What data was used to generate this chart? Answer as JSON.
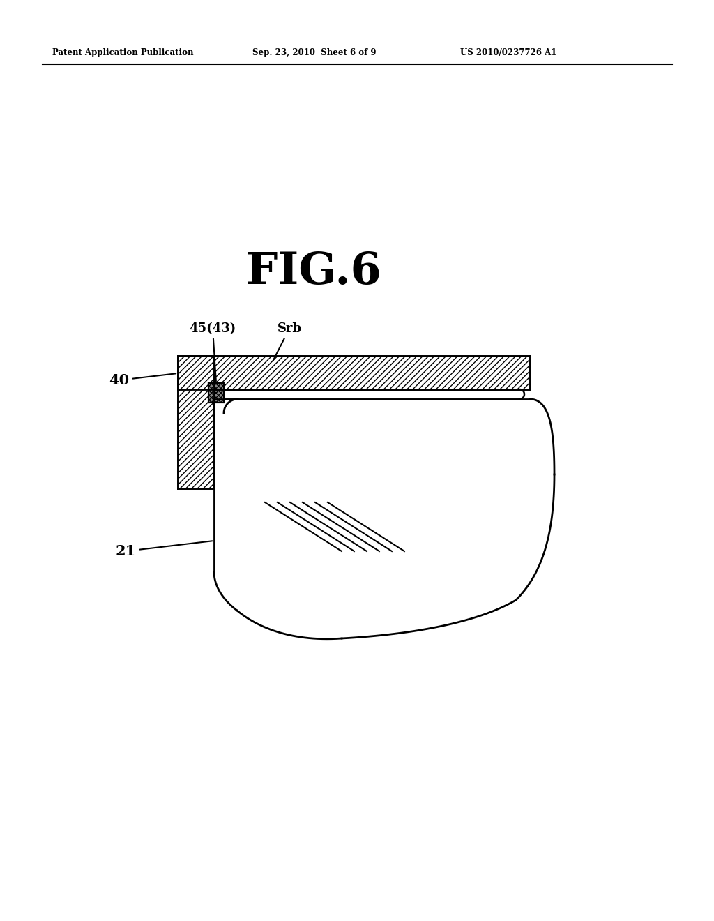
{
  "header_left": "Patent Application Publication",
  "header_mid": "Sep. 23, 2010  Sheet 6 of 9",
  "header_right": "US 2010/0237726 A1",
  "fig_title": "FIG.6",
  "label_40": "40",
  "label_21": "21",
  "label_45_43": "45(43)",
  "label_srb": "Srb",
  "bg_color": "#ffffff",
  "line_color": "#000000"
}
